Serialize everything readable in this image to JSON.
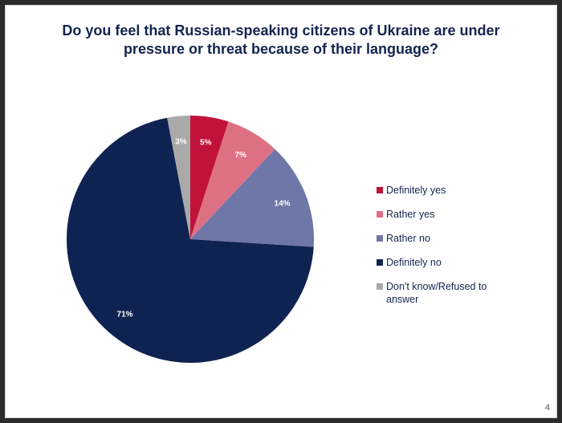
{
  "slide": {
    "title_line1": "Do you feel that Russian-speaking citizens of Ukraine are under",
    "title_line2": "pressure or threat because of their language?",
    "page_number": "4"
  },
  "chart_data": {
    "type": "pie",
    "title": "Do you feel that Russian-speaking citizens of Ukraine are under pressure or threat because of their language?",
    "legend_position": "right",
    "slices": [
      {
        "label": "Definitely yes",
        "value": 5,
        "display": "5%",
        "color": "#c0123a"
      },
      {
        "label": "Rather yes",
        "value": 7,
        "display": "7%",
        "color": "#de7083"
      },
      {
        "label": "Rather no",
        "value": 14,
        "display": "14%",
        "color": "#6e77a8"
      },
      {
        "label": "Definitely no",
        "value": 71,
        "display": "71%",
        "color": "#0f2352"
      },
      {
        "label": "Don't know/Refused to answer",
        "value": 3,
        "display": "3%",
        "color": "#a9a9a9"
      }
    ]
  }
}
